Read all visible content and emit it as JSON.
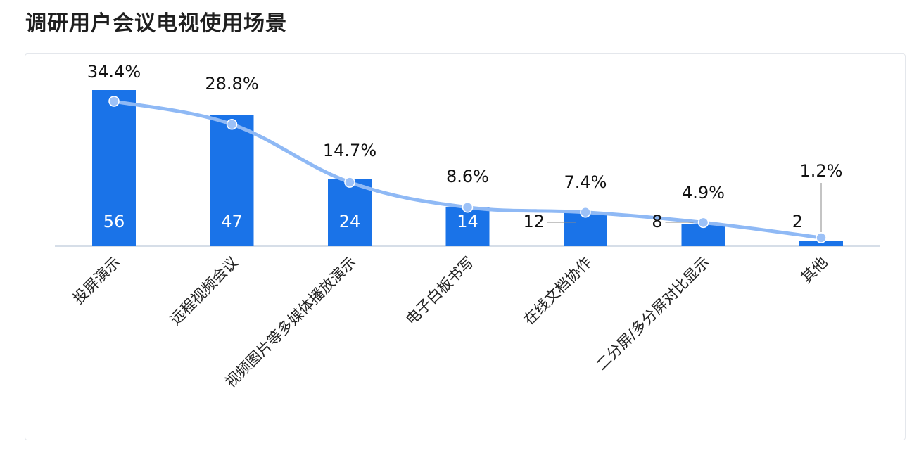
{
  "title": "调研用户会议电视使用场景",
  "chart_data": {
    "type": "bar",
    "categories": [
      "投屏演示",
      "远程视频会议",
      "视频图片等多媒体播放演示",
      "电子白板书写",
      "在线文档协作",
      "二分屏/多分屏对比显示",
      "其他"
    ],
    "series": [
      {
        "values": [
          56,
          47,
          24,
          14,
          12,
          8,
          2
        ]
      },
      {
        "values": [
          "34.4%",
          "28.8%",
          "14.7%",
          "8.6%",
          "7.4%",
          "4.9%",
          "1.2%"
        ],
        "numeric": [
          34.4,
          28.8,
          14.7,
          8.6,
          7.4,
          4.9,
          1.2
        ]
      }
    ],
    "ylim": [
      0,
      60
    ],
    "grid": false,
    "colors": {
      "bar": "#1a73e8",
      "line": "#8fb9f5"
    }
  }
}
